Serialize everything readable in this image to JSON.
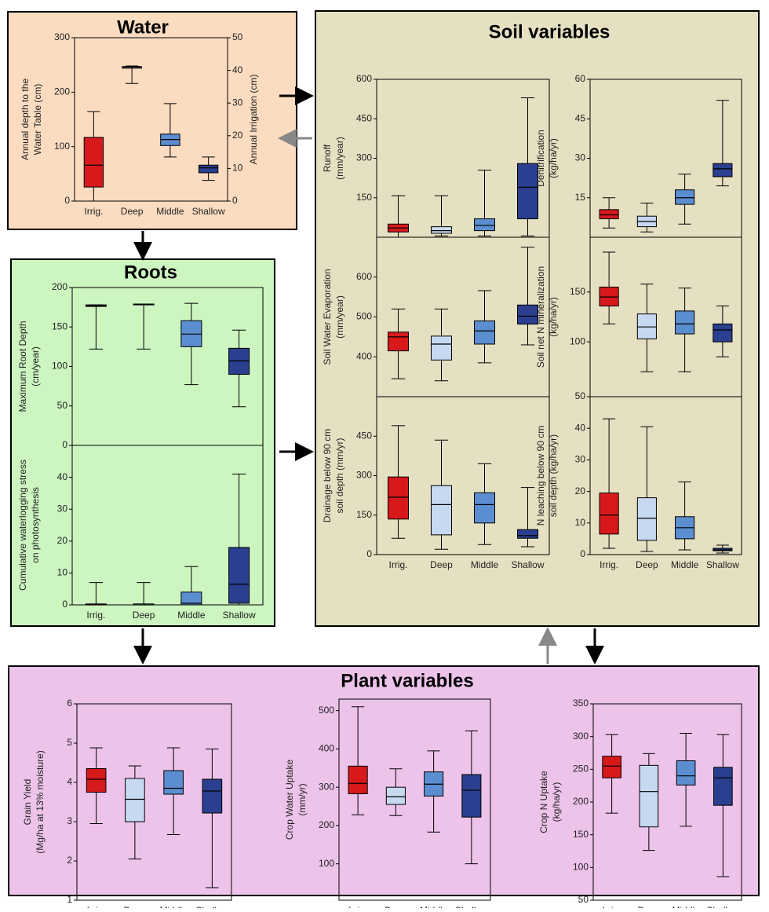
{
  "panels": [
    "Water",
    "Roots",
    "Soil variables",
    "Plant variables"
  ],
  "chart_data": [
    {
      "type": "box",
      "ylabel": [
        "Annual depth to the",
        "Water Table (cm)"
      ],
      "y2label": [
        "Annual Irrigation (cm)"
      ],
      "categories": [
        "Irrig.",
        "Deep",
        "Middle",
        "Shallow"
      ],
      "colors": [
        "#d7191c",
        "#c6d9f0",
        "#5b8ed0",
        "#2a3f8f"
      ],
      "ylim": [
        0,
        300
      ],
      "yticks": [
        0,
        100,
        200,
        300
      ],
      "y2lim": [
        0,
        50
      ],
      "y2ticks": [
        0,
        10,
        20,
        30,
        40,
        50
      ],
      "boxes": [
        {
          "min": 0,
          "q1": 4.3,
          "median": 11,
          "q3": 19.5,
          "max": 27.4,
          "axis": "y2"
        },
        {
          "min": 216,
          "q1": 244,
          "median": 246,
          "q3": 247,
          "max": 248
        },
        {
          "min": 81,
          "q1": 102,
          "median": 113,
          "q3": 123,
          "max": 179
        },
        {
          "min": 38,
          "q1": 52,
          "median": 61,
          "q3": 66,
          "max": 81
        }
      ]
    },
    {
      "type": "box",
      "ylabel": [
        "Maximum Root Depth",
        "(cm/year)"
      ],
      "categories": [
        null,
        null,
        null,
        null
      ],
      "colors": [
        "#d7191c",
        "#c6d9f0",
        "#5b8ed0",
        "#2a3f8f"
      ],
      "ylim": [
        0,
        200
      ],
      "yticks": [
        0,
        50,
        100,
        150,
        200
      ],
      "boxes": [
        {
          "min": 122,
          "q1": 176,
          "median": 177,
          "q3": 178,
          "max": 178
        },
        {
          "min": 122,
          "q1": 179,
          "median": 179,
          "q3": 179,
          "max": 179
        },
        {
          "min": 77,
          "q1": 125,
          "median": 141,
          "q3": 158,
          "max": 180
        },
        {
          "min": 49,
          "q1": 90,
          "median": 107,
          "q3": 123,
          "max": 146
        }
      ]
    },
    {
      "type": "box",
      "ylabel": [
        "Cumulative waterlogging stress",
        "on photosynthesis"
      ],
      "categories": [
        "Irrig.",
        "Deep",
        "Middle",
        "Shallow"
      ],
      "colors": [
        "#d7191c",
        "#c6d9f0",
        "#5b8ed0",
        "#2a3f8f"
      ],
      "ylim": [
        0,
        50
      ],
      "yticks": [
        0,
        10,
        20,
        30,
        40
      ],
      "boxes": [
        {
          "min": 0,
          "q1": 0,
          "median": 0,
          "q3": 0.3,
          "max": 7
        },
        {
          "min": 0,
          "q1": 0,
          "median": 0,
          "q3": 0.3,
          "max": 7
        },
        {
          "min": 0,
          "q1": 0,
          "median": 0.5,
          "q3": 4,
          "max": 12
        },
        {
          "min": 0,
          "q1": 0.5,
          "median": 6.5,
          "q3": 18,
          "max": 41
        }
      ]
    },
    {
      "type": "box",
      "ylabel": [
        "Runoff",
        "(mm/year)"
      ],
      "categories": [
        null,
        null,
        null,
        null
      ],
      "colors": [
        "#d7191c",
        "#c6d9f0",
        "#5b8ed0",
        "#2a3f8f"
      ],
      "ylim": [
        0,
        600
      ],
      "yticks": [
        150,
        300,
        450,
        600
      ],
      "boxes": [
        {
          "min": 0,
          "q1": 20,
          "median": 35,
          "q3": 50,
          "max": 158
        },
        {
          "min": 5,
          "q1": 15,
          "median": 25,
          "q3": 40,
          "max": 158
        },
        {
          "min": 5,
          "q1": 25,
          "median": 45,
          "q3": 70,
          "max": 255
        },
        {
          "min": 5,
          "q1": 70,
          "median": 190,
          "q3": 280,
          "max": 530
        }
      ]
    },
    {
      "type": "box",
      "ylabel": [
        "Denitrification",
        "(kg/ha/yr)"
      ],
      "categories": [
        null,
        null,
        null,
        null
      ],
      "colors": [
        "#d7191c",
        "#c6d9f0",
        "#5b8ed0",
        "#2a3f8f"
      ],
      "ylim": [
        0,
        60
      ],
      "yticks": [
        15,
        30,
        45,
        60
      ],
      "boxes": [
        {
          "min": 3.5,
          "q1": 7,
          "median": 8.5,
          "q3": 10.5,
          "max": 15
        },
        {
          "min": 2,
          "q1": 4,
          "median": 6,
          "q3": 8,
          "max": 13
        },
        {
          "min": 5,
          "q1": 12.5,
          "median": 15,
          "q3": 18,
          "max": 24
        },
        {
          "min": 19.5,
          "q1": 23,
          "median": 26,
          "q3": 28,
          "max": 52
        }
      ]
    },
    {
      "type": "box",
      "ylabel": [
        "Soil Water Evaporation",
        "(mm/year)"
      ],
      "categories": [
        null,
        null,
        null,
        null
      ],
      "colors": [
        "#d7191c",
        "#c6d9f0",
        "#5b8ed0",
        "#2a3f8f"
      ],
      "ylim": [
        300,
        700
      ],
      "yticks": [
        400,
        500,
        600
      ],
      "boxes": [
        {
          "min": 345,
          "q1": 415,
          "median": 450,
          "q3": 462,
          "max": 520
        },
        {
          "min": 340,
          "q1": 392,
          "median": 432,
          "q3": 452,
          "max": 520
        },
        {
          "min": 385,
          "q1": 432,
          "median": 465,
          "q3": 490,
          "max": 566
        },
        {
          "min": 430,
          "q1": 482,
          "median": 502,
          "q3": 530,
          "max": 675
        }
      ]
    },
    {
      "type": "box",
      "ylabel": [
        "Soil net N mineralization",
        "(kg/ha/yr)"
      ],
      "categories": [
        null,
        null,
        null,
        null
      ],
      "colors": [
        "#d7191c",
        "#c6d9f0",
        "#5b8ed0",
        "#2a3f8f"
      ],
      "ylim": [
        45,
        205
      ],
      "yticks": [
        100,
        150
      ],
      "boxes": [
        {
          "min": 118,
          "q1": 136,
          "median": 145,
          "q3": 155,
          "max": 190
        },
        {
          "min": 70,
          "q1": 103,
          "median": 115,
          "q3": 128,
          "max": 158
        },
        {
          "min": 70,
          "q1": 108,
          "median": 118,
          "q3": 131,
          "max": 154
        },
        {
          "min": 85,
          "q1": 100,
          "median": 112,
          "q3": 118,
          "max": 136
        }
      ]
    },
    {
      "type": "box",
      "ylabel": [
        "Drainage below 90 cm",
        "soil depth (mm/yr)"
      ],
      "categories": [
        "Irrig.",
        "Deep",
        "Middle",
        "Shallow"
      ],
      "colors": [
        "#d7191c",
        "#c6d9f0",
        "#5b8ed0",
        "#2a3f8f"
      ],
      "ylim": [
        0,
        600
      ],
      "yticks": [
        0,
        150,
        300,
        450
      ],
      "boxes": [
        {
          "min": 62,
          "q1": 135,
          "median": 218,
          "q3": 295,
          "max": 490
        },
        {
          "min": 20,
          "q1": 75,
          "median": 190,
          "q3": 262,
          "max": 435
        },
        {
          "min": 38,
          "q1": 120,
          "median": 190,
          "q3": 235,
          "max": 345
        },
        {
          "min": 30,
          "q1": 62,
          "median": 72,
          "q3": 95,
          "max": 255
        }
      ]
    },
    {
      "type": "box",
      "ylabel": [
        "N leaching below 90 cm",
        "soil depth (kg/ha/yr)"
      ],
      "categories": [
        "Irrig.",
        "Deep",
        "Middle",
        "Shallow"
      ],
      "colors": [
        "#d7191c",
        "#c6d9f0",
        "#5b8ed0",
        "#2a3f8f"
      ],
      "ylim": [
        0,
        50
      ],
      "yticks": [
        0,
        10,
        20,
        30,
        40,
        50
      ],
      "boxes": [
        {
          "min": 2,
          "q1": 6.5,
          "median": 12.5,
          "q3": 19.5,
          "max": 43
        },
        {
          "min": 1,
          "q1": 4.5,
          "median": 11.5,
          "q3": 18,
          "max": 40.5
        },
        {
          "min": 1.5,
          "q1": 5,
          "median": 8.5,
          "q3": 12,
          "max": 23
        },
        {
          "min": 0.5,
          "q1": 1.2,
          "median": 1.5,
          "q3": 2,
          "max": 3
        }
      ]
    },
    {
      "type": "box",
      "ylabel": [
        "Grain Yield",
        "(Mg/ha at 13% moisture)"
      ],
      "categories": [
        "Irrig.",
        "Deep",
        "Middle",
        "Shallow"
      ],
      "colors": [
        "#d7191c",
        "#c6d9f0",
        "#5b8ed0",
        "#2a3f8f"
      ],
      "ylim": [
        1,
        6
      ],
      "yticks": [
        1,
        2,
        3,
        4,
        5,
        6
      ],
      "boxes": [
        {
          "min": 2.95,
          "q1": 3.75,
          "median": 4.08,
          "q3": 4.35,
          "max": 4.88
        },
        {
          "min": 2.05,
          "q1": 3.0,
          "median": 3.57,
          "q3": 4.1,
          "max": 4.42
        },
        {
          "min": 2.67,
          "q1": 3.7,
          "median": 3.85,
          "q3": 4.3,
          "max": 4.88
        },
        {
          "min": 1.32,
          "q1": 3.22,
          "median": 3.78,
          "q3": 4.08,
          "max": 4.85
        }
      ]
    },
    {
      "type": "box",
      "ylabel": [
        "Crop Water Uptake",
        "(mm/yr)"
      ],
      "categories": [
        "Irrig.",
        "Deep",
        "Middle",
        "Shallow"
      ],
      "colors": [
        "#d7191c",
        "#c6d9f0",
        "#5b8ed0",
        "#2a3f8f"
      ],
      "ylim": [
        5,
        530
      ],
      "yticks": [
        100,
        200,
        300,
        400,
        500
      ],
      "boxes": [
        {
          "min": 228,
          "q1": 283,
          "median": 310,
          "q3": 355,
          "max": 510
        },
        {
          "min": 226,
          "q1": 255,
          "median": 275,
          "q3": 300,
          "max": 348
        },
        {
          "min": 183,
          "q1": 277,
          "median": 308,
          "q3": 340,
          "max": 395
        },
        {
          "min": 100,
          "q1": 222,
          "median": 292,
          "q3": 333,
          "max": 447
        }
      ]
    },
    {
      "type": "box",
      "ylabel": [
        "Crop N Uptake",
        "(kg/ha/yr)"
      ],
      "categories": [
        "Irrig.",
        "Deep",
        "Middle",
        "Shallow"
      ],
      "colors": [
        "#d7191c",
        "#c6d9f0",
        "#5b8ed0",
        "#2a3f8f"
      ],
      "ylim": [
        50,
        350
      ],
      "yticks": [
        50,
        100,
        150,
        200,
        250,
        300,
        350
      ],
      "boxes": [
        {
          "min": 183,
          "q1": 237,
          "median": 255,
          "q3": 270,
          "max": 303
        },
        {
          "min": 126,
          "q1": 162,
          "median": 216,
          "q3": 256,
          "max": 274
        },
        {
          "min": 163,
          "q1": 226,
          "median": 240,
          "q3": 263,
          "max": 305
        },
        {
          "min": 86,
          "q1": 195,
          "median": 237,
          "q3": 253,
          "max": 303
        }
      ]
    }
  ]
}
